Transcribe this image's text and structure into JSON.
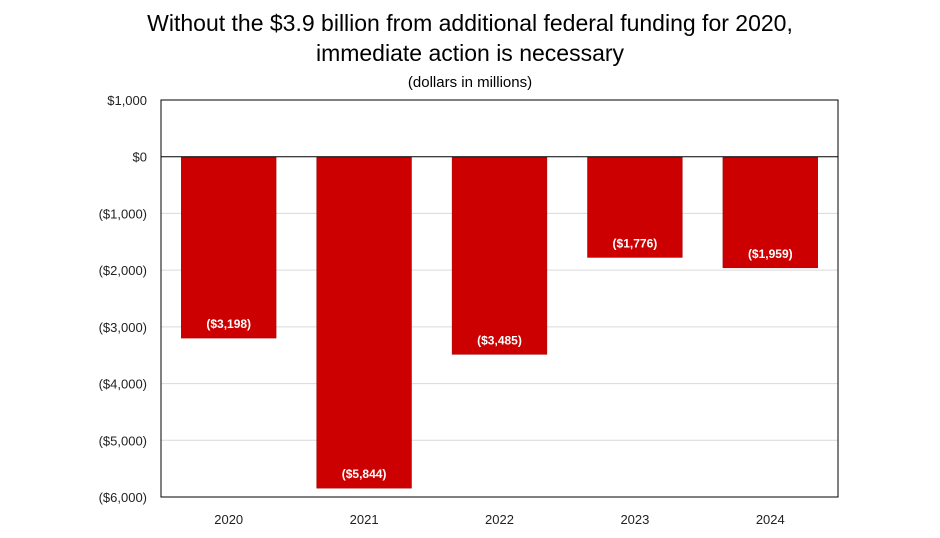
{
  "chart_data": {
    "type": "bar",
    "title_line1": "Without the $3.9 billion from additional federal funding for 2020,",
    "title_line2": "immediate action is necessary",
    "subtitle": "(dollars in millions)",
    "categories": [
      "2020",
      "2021",
      "2022",
      "2023",
      "2024"
    ],
    "values": [
      -3198,
      -5844,
      -3485,
      -1776,
      -1959
    ],
    "data_labels": [
      "($3,198)",
      "($5,844)",
      "($3,485)",
      "($1,776)",
      "($1,959)"
    ],
    "ylim": [
      -6000,
      1000
    ],
    "yticks": [
      1000,
      0,
      -1000,
      -2000,
      -3000,
      -4000,
      -5000,
      -6000
    ],
    "ytick_labels": [
      "$1,000",
      "$0",
      "($1,000)",
      "($2,000)",
      "($3,000)",
      "($4,000)",
      "($5,000)",
      "($6,000)"
    ],
    "grid": true,
    "bar_color": "#cc0000",
    "grid_color": "#d9d9d9"
  }
}
